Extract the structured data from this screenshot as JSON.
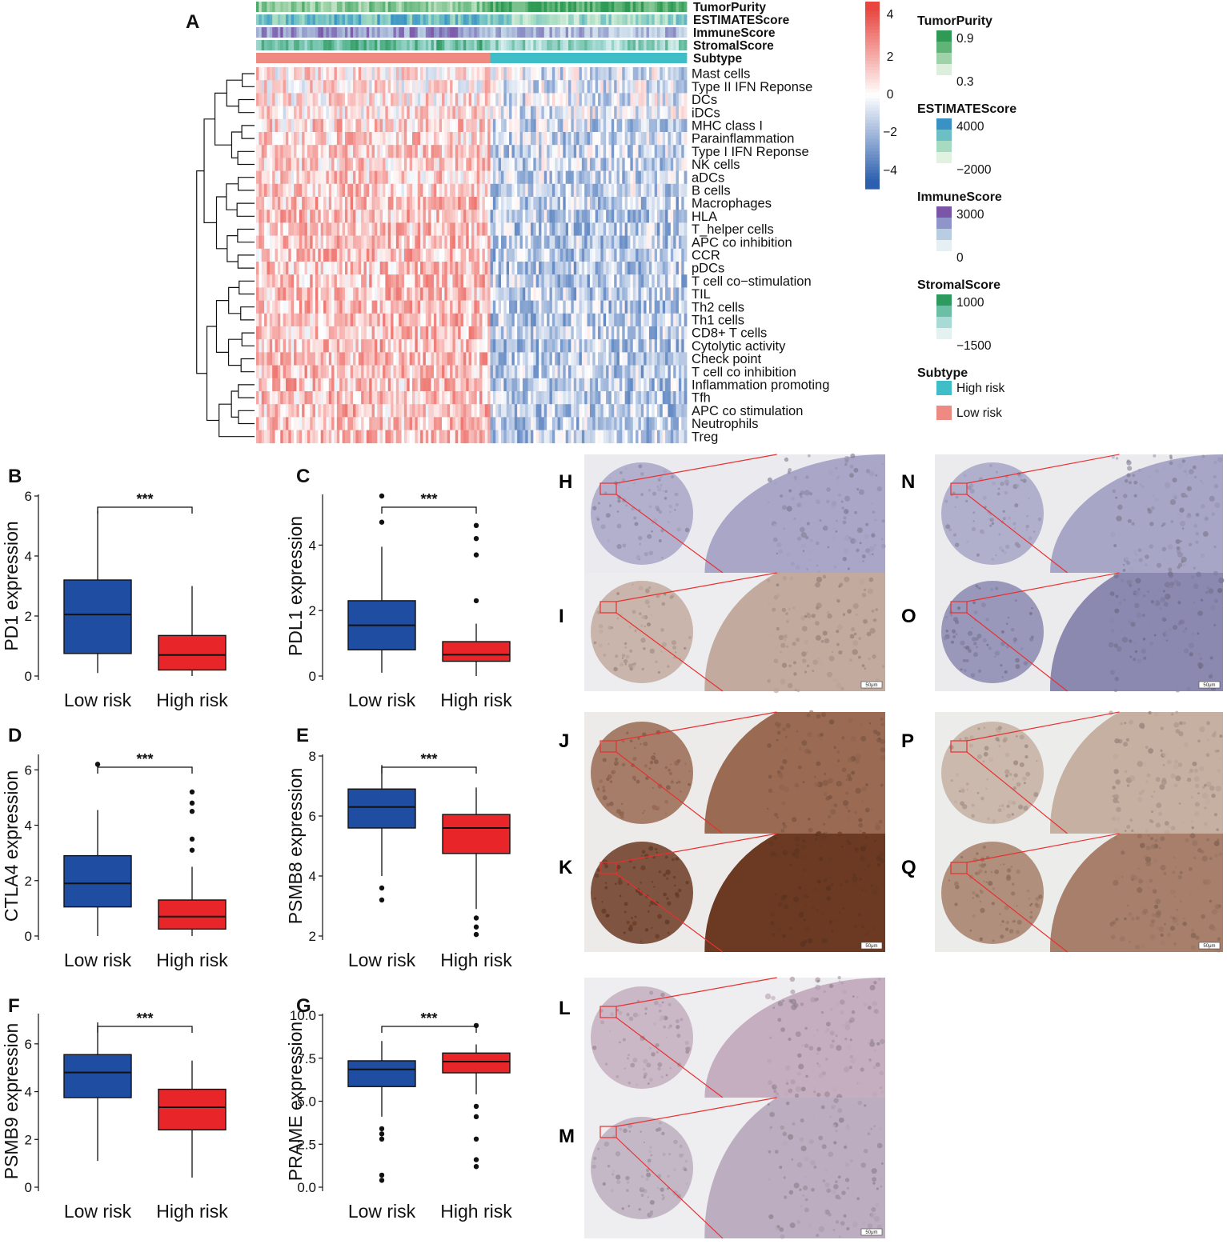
{
  "panels": {
    "A": "A",
    "B": "B",
    "C": "C",
    "D": "D",
    "E": "E",
    "F": "F",
    "G": "G",
    "H": "H",
    "I": "I",
    "J": "J",
    "K": "K",
    "L": "L",
    "M": "M",
    "N": "N",
    "O": "O",
    "P": "P",
    "Q": "Q"
  },
  "heatmap": {
    "annotation_tracks": [
      "TumorPurity",
      "ESTIMATEScore",
      "ImmuneScore",
      "StromalScore",
      "Subtype"
    ],
    "rows": [
      "Mast cells",
      "Type II IFN Reponse",
      "DCs",
      "iDCs",
      "MHC class I",
      "Parainflammation",
      "Type I IFN Reponse",
      "NK cells",
      "aDCs",
      "B cells",
      "Macrophages",
      "HLA",
      "T_helper cells",
      "APC co inhibition",
      "CCR",
      "pDCs",
      "T cell co−stimulation",
      "TIL",
      "Th2 cells",
      "Th1 cells",
      "CD8+ T cells",
      "Cytolytic activity",
      "Check point",
      "T cell co inhibition",
      "Inflammation promoting",
      "Tfh",
      "APC co stimulation",
      "Neutrophils",
      "Treg"
    ],
    "color_scale": {
      "ticks": [
        "4",
        "2",
        "0",
        "−2",
        "−4"
      ],
      "low": "#2c5fae",
      "mid": "#ffffff",
      "high": "#e8463f"
    },
    "legends": [
      {
        "title": "TumorPurity",
        "labels": [
          "0.9",
          "0.3"
        ],
        "colors": [
          "#2e9a54",
          "#5fb477",
          "#9fd2a8",
          "#dcefdc"
        ]
      },
      {
        "title": "ESTIMATEScore",
        "labels": [
          "4000",
          "−2000"
        ],
        "colors": [
          "#3a92c4",
          "#6cbfc4",
          "#a6dbc1",
          "#e2f2e0"
        ]
      },
      {
        "title": "ImmuneScore",
        "labels": [
          "3000",
          "0"
        ],
        "colors": [
          "#7b55a8",
          "#8f95c8",
          "#b9cde2",
          "#e5eff4"
        ]
      },
      {
        "title": "StromalScore",
        "labels": [
          "1000",
          "−1500"
        ],
        "colors": [
          "#2e9a5e",
          "#6bbfa4",
          "#a8dad6",
          "#e3f2f1"
        ]
      },
      {
        "title": "Subtype",
        "items": [
          {
            "label": "High risk",
            "color": "#3fbec8"
          },
          {
            "label": "Low risk",
            "color": "#ef8a82"
          }
        ]
      }
    ],
    "subtype_colors": {
      "low": "#ef8a82",
      "high": "#3fbec8"
    }
  },
  "chart_data": [
    {
      "type": "box",
      "panel": "B",
      "ylabel": "PD1 expression",
      "categories": [
        "Low risk",
        "High risk"
      ],
      "ylim": [
        0,
        6
      ],
      "yticks": [
        "0",
        "2",
        "4",
        "6"
      ],
      "boxes": [
        {
          "q1": 0.75,
          "median": 2.05,
          "q3": 3.2,
          "whislo": 0.1,
          "whishi": 5.5,
          "outliers": []
        },
        {
          "q1": 0.2,
          "median": 0.7,
          "q3": 1.35,
          "whislo": 0.0,
          "whishi": 3.0,
          "outliers": []
        }
      ],
      "significance": "***"
    },
    {
      "type": "box",
      "panel": "C",
      "ylabel": "PDL1 expression",
      "categories": [
        "Low risk",
        "High risk"
      ],
      "ylim": [
        0,
        5.5
      ],
      "yticks": [
        "0",
        "2",
        "4"
      ],
      "boxes": [
        {
          "q1": 0.8,
          "median": 1.55,
          "q3": 2.3,
          "whislo": 0.1,
          "whishi": 3.95,
          "outliers": [
            4.7,
            5.5
          ]
        },
        {
          "q1": 0.45,
          "median": 0.65,
          "q3": 1.05,
          "whislo": 0.0,
          "whishi": 1.6,
          "outliers": [
            2.3,
            3.7,
            4.2,
            4.6
          ]
        }
      ],
      "significance": "***"
    },
    {
      "type": "box",
      "panel": "D",
      "ylabel": "CTLA4 expression",
      "categories": [
        "Low risk",
        "High risk"
      ],
      "ylim": [
        0,
        6.5
      ],
      "yticks": [
        "0",
        "2",
        "4",
        "6"
      ],
      "boxes": [
        {
          "q1": 1.05,
          "median": 1.9,
          "q3": 2.9,
          "whislo": 0.0,
          "whishi": 4.55,
          "outliers": [
            6.2
          ]
        },
        {
          "q1": 0.25,
          "median": 0.7,
          "q3": 1.3,
          "whislo": 0.0,
          "whishi": 2.5,
          "outliers": [
            3.1,
            3.5,
            4.5,
            4.8,
            5.2
          ]
        }
      ],
      "significance": "***"
    },
    {
      "type": "box",
      "panel": "E",
      "ylabel": "PSMB8 expression",
      "categories": [
        "Low risk",
        "High risk"
      ],
      "ylim": [
        2,
        8
      ],
      "yticks": [
        "2",
        "4",
        "6",
        "8"
      ],
      "boxes": [
        {
          "q1": 5.6,
          "median": 6.3,
          "q3": 6.9,
          "whislo": 4.0,
          "whishi": 7.7,
          "outliers": [
            3.6,
            3.2
          ]
        },
        {
          "q1": 4.75,
          "median": 5.6,
          "q3": 6.05,
          "whislo": 2.9,
          "whishi": 6.95,
          "outliers": [
            2.6,
            2.3,
            2.05
          ]
        }
      ],
      "significance": "***"
    },
    {
      "type": "box",
      "panel": "F",
      "ylabel": "PSMB9 expression",
      "categories": [
        "Low risk",
        "High risk"
      ],
      "ylim": [
        0,
        7.2
      ],
      "yticks": [
        "0",
        "2",
        "4",
        "6"
      ],
      "boxes": [
        {
          "q1": 3.75,
          "median": 4.8,
          "q3": 5.55,
          "whislo": 1.1,
          "whishi": 6.9,
          "outliers": []
        },
        {
          "q1": 2.4,
          "median": 3.35,
          "q3": 4.1,
          "whislo": 0.4,
          "whishi": 5.3,
          "outliers": []
        }
      ],
      "significance": "***"
    },
    {
      "type": "box",
      "panel": "G",
      "ylabel": "PRAME expression",
      "categories": [
        "Low risk",
        "High risk"
      ],
      "ylim": [
        0,
        10
      ],
      "yticks": [
        "0.0",
        "2.5",
        "5.0",
        "7.5",
        "10.0"
      ],
      "boxes": [
        {
          "q1": 5.85,
          "median": 6.85,
          "q3": 7.35,
          "whislo": 4.1,
          "whishi": 8.5,
          "outliers": [
            3.4,
            3.1,
            2.8,
            0.7,
            0.4
          ]
        },
        {
          "q1": 6.65,
          "median": 7.3,
          "q3": 7.8,
          "whislo": 5.4,
          "whishi": 8.3,
          "outliers": [
            9.4,
            4.7,
            4.1,
            2.8,
            1.6,
            1.2
          ]
        }
      ],
      "significance": "***"
    }
  ],
  "ihc": {
    "scale_label": "50μm",
    "images": [
      {
        "panel": "H",
        "stain": "#a9a6c8",
        "core_bg": "#ebebef"
      },
      {
        "panel": "I",
        "stain": "#c2aa9f",
        "core_bg": "#ededef"
      },
      {
        "panel": "J",
        "stain": "#9a6a52",
        "core_bg": "#ecebea"
      },
      {
        "panel": "K",
        "stain": "#6c3a22",
        "core_bg": "#ecebea"
      },
      {
        "panel": "L",
        "stain": "#c4aec0",
        "core_bg": "#eeedf0"
      },
      {
        "panel": "M",
        "stain": "#bcaec0",
        "core_bg": "#eeedf0"
      },
      {
        "panel": "N",
        "stain": "#a7a6c6",
        "core_bg": "#ebebee"
      },
      {
        "panel": "O",
        "stain": "#8b89b0",
        "core_bg": "#ebebee"
      },
      {
        "panel": "P",
        "stain": "#c6b0a2",
        "core_bg": "#ececeb"
      },
      {
        "panel": "Q",
        "stain": "#a77f6a",
        "core_bg": "#ececeb"
      }
    ]
  },
  "colors": {
    "low_box": "#1e4da1",
    "high_box": "#e8262a",
    "zoom_line": "#e83030"
  }
}
